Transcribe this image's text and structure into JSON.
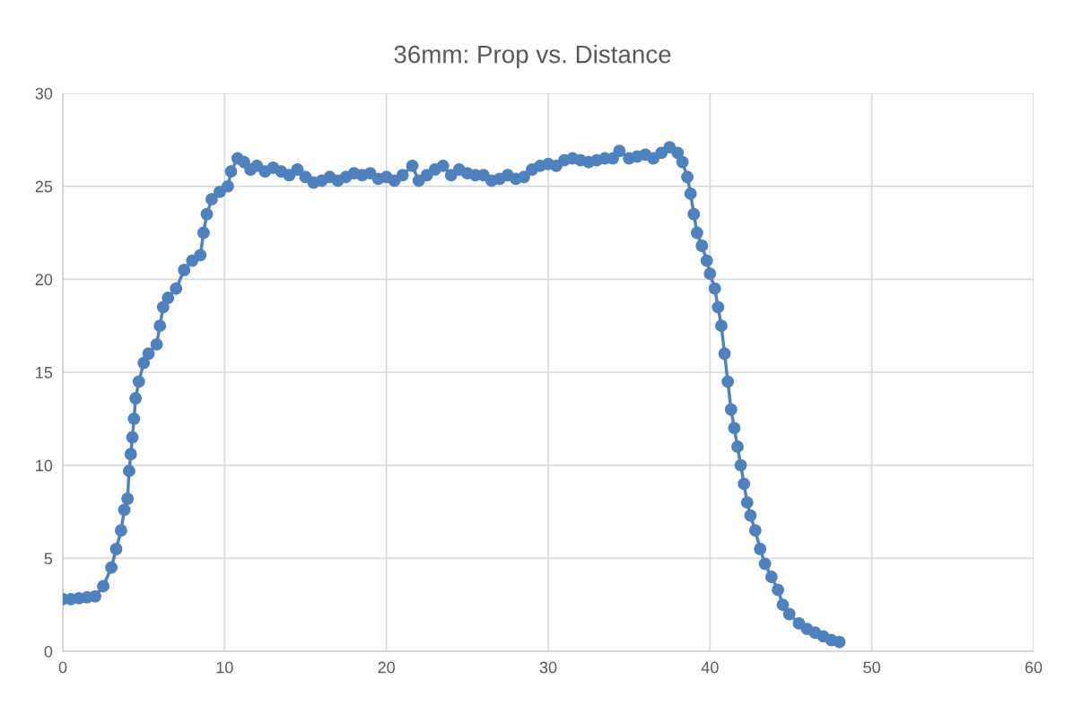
{
  "chart_data": {
    "type": "line",
    "title": "36mm: Prop vs. Distance",
    "xlim": [
      0,
      60
    ],
    "xticks": [
      0,
      10,
      20,
      30,
      40,
      50,
      60
    ],
    "ylim": [
      0,
      30
    ],
    "yticks": [
      0,
      5,
      10,
      15,
      20,
      25,
      30
    ],
    "grid": true,
    "marker": "circle",
    "line_style": "solid",
    "series": [
      {
        "color": "#4f81bd",
        "x": [
          0,
          0.5,
          1,
          1.5,
          2,
          2.5,
          3,
          3.3,
          3.6,
          3.8,
          4,
          4.1,
          4.2,
          4.3,
          4.4,
          4.5,
          4.7,
          5,
          5.3,
          5.8,
          6,
          6.2,
          6.5,
          7,
          7.5,
          8,
          8.5,
          8.7,
          8.9,
          9.2,
          9.7,
          10.2,
          10.4,
          10.8,
          11.2,
          11.6,
          12,
          12.5,
          13,
          13.5,
          14,
          14.5,
          15,
          15.5,
          16,
          16.5,
          17,
          17.5,
          18,
          18.5,
          19,
          19.5,
          20,
          20.5,
          21,
          21.6,
          22,
          22.5,
          23,
          23.5,
          24,
          24.5,
          25,
          25.5,
          26,
          26.5,
          27,
          27.5,
          28,
          28.5,
          29,
          29.5,
          30,
          30.5,
          31,
          31.5,
          32,
          32.5,
          33,
          33.5,
          34,
          34.4,
          35,
          35.5,
          36,
          36.5,
          37,
          37.5,
          38,
          38.3,
          38.6,
          38.8,
          39,
          39.2,
          39.5,
          39.8,
          40,
          40.3,
          40.5,
          40.7,
          40.9,
          41.1,
          41.3,
          41.5,
          41.7,
          41.9,
          42.1,
          42.3,
          42.5,
          42.8,
          43.1,
          43.4,
          43.8,
          44.2,
          44.5,
          44.9,
          45.5,
          46,
          46.5,
          47,
          47.5,
          48
        ],
        "values": [
          2.8,
          2.8,
          2.85,
          2.9,
          2.95,
          3.5,
          4.5,
          5.5,
          6.5,
          7.6,
          8.2,
          9.7,
          10.6,
          11.5,
          12.5,
          13.6,
          14.5,
          15.5,
          16.0,
          16.5,
          17.5,
          18.5,
          19.0,
          19.5,
          20.5,
          21.0,
          21.3,
          22.5,
          23.5,
          24.3,
          24.7,
          25.0,
          25.8,
          26.5,
          26.3,
          25.9,
          26.1,
          25.8,
          26.0,
          25.8,
          25.6,
          25.9,
          25.5,
          25.2,
          25.3,
          25.5,
          25.3,
          25.5,
          25.7,
          25.6,
          25.7,
          25.4,
          25.5,
          25.3,
          25.6,
          26.1,
          25.3,
          25.6,
          25.9,
          26.1,
          25.6,
          25.9,
          25.7,
          25.6,
          25.6,
          25.3,
          25.4,
          25.6,
          25.4,
          25.5,
          25.9,
          26.1,
          26.2,
          26.1,
          26.4,
          26.5,
          26.4,
          26.3,
          26.4,
          26.5,
          26.5,
          26.9,
          26.5,
          26.6,
          26.7,
          26.5,
          26.8,
          27.1,
          26.8,
          26.3,
          25.5,
          24.6,
          23.5,
          22.5,
          21.8,
          21.0,
          20.3,
          19.5,
          18.5,
          17.5,
          16.0,
          14.5,
          13.0,
          12.0,
          11.0,
          10.0,
          9.0,
          8.0,
          7.3,
          6.5,
          5.5,
          4.7,
          4.0,
          3.3,
          2.5,
          2.0,
          1.5,
          1.2,
          1.0,
          0.8,
          0.6,
          0.5
        ]
      }
    ]
  }
}
